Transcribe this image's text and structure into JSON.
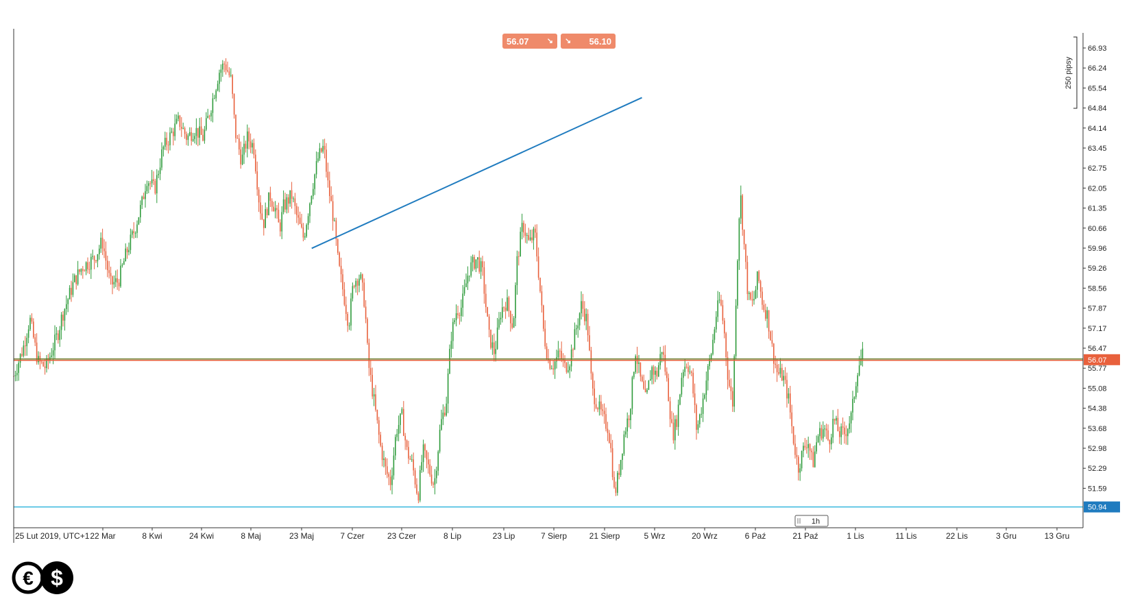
{
  "trade": {
    "sell_price": "56.07",
    "buy_price": "56.10",
    "sell_arrow": "↘",
    "buy_arrow": "↘"
  },
  "timeframe": "1h",
  "pip_label": "250 pipsy",
  "current_price_label": "56.07",
  "support_label": "50.94",
  "colors": {
    "up_candle": "#2e9b3b",
    "down_candle": "#e8603c",
    "trendline": "#1f7bbf",
    "support": "#37b8de",
    "support_tag": "#1f7bbf",
    "current_line": "#6a7a2a",
    "current_line2": "#e8603c",
    "current_tag": "#e8603c",
    "axis": "#333333"
  },
  "chart_data": {
    "type": "candlestick",
    "y_ticks": [
      "66.93",
      "66.24",
      "65.54",
      "64.84",
      "64.14",
      "63.45",
      "62.75",
      "62.05",
      "61.35",
      "60.66",
      "59.96",
      "59.26",
      "58.56",
      "57.87",
      "57.17",
      "56.47",
      "55.77",
      "55.08",
      "54.38",
      "53.68",
      "52.98",
      "52.29",
      "51.59"
    ],
    "ylim": [
      50.5,
      67.3
    ],
    "x_ticks": [
      "25 Lut 2019, UTC+1",
      "22 Mar",
      "8 Kwi",
      "24 Kwi",
      "8 Maj",
      "23 Maj",
      "7 Czer",
      "23 Czer",
      "8 Lip",
      "23 Lip",
      "7 Sierp",
      "21 Sierp",
      "5 Wrz",
      "20 Wrz",
      "6 Paź",
      "21 Paź",
      "1 Lis",
      "11 Lis",
      "22 Lis",
      "3 Gru",
      "13 Gru"
    ],
    "price_path": [
      [
        0,
        55.5
      ],
      [
        0.012,
        56.5
      ],
      [
        0.02,
        57.5
      ],
      [
        0.03,
        56.0
      ],
      [
        0.04,
        55.8
      ],
      [
        0.055,
        57.0
      ],
      [
        0.06,
        57.6
      ],
      [
        0.075,
        58.8
      ],
      [
        0.085,
        59.3
      ],
      [
        0.1,
        59.6
      ],
      [
        0.11,
        60.2
      ],
      [
        0.12,
        58.7
      ],
      [
        0.13,
        58.8
      ],
      [
        0.14,
        59.8
      ],
      [
        0.15,
        60.6
      ],
      [
        0.16,
        61.6
      ],
      [
        0.165,
        62.4
      ],
      [
        0.175,
        62.0
      ],
      [
        0.185,
        63.4
      ],
      [
        0.195,
        63.9
      ],
      [
        0.205,
        64.4
      ],
      [
        0.215,
        63.8
      ],
      [
        0.225,
        64.1
      ],
      [
        0.235,
        63.8
      ],
      [
        0.245,
        64.9
      ],
      [
        0.255,
        66.1
      ],
      [
        0.262,
        66.4
      ],
      [
        0.27,
        65.8
      ],
      [
        0.275,
        64.0
      ],
      [
        0.283,
        63.0
      ],
      [
        0.29,
        63.8
      ],
      [
        0.298,
        63.5
      ],
      [
        0.305,
        61.5
      ],
      [
        0.31,
        60.8
      ],
      [
        0.318,
        61.8
      ],
      [
        0.325,
        61.3
      ],
      [
        0.33,
        60.6
      ],
      [
        0.335,
        61.4
      ],
      [
        0.345,
        61.8
      ],
      [
        0.352,
        61.0
      ],
      [
        0.36,
        60.3
      ],
      [
        0.37,
        62.0
      ],
      [
        0.378,
        63.1
      ],
      [
        0.385,
        63.5
      ],
      [
        0.39,
        62.2
      ],
      [
        0.397,
        61.0
      ],
      [
        0.403,
        59.4
      ],
      [
        0.41,
        58.3
      ],
      [
        0.416,
        57.3
      ],
      [
        0.422,
        58.8
      ],
      [
        0.43,
        59.0
      ],
      [
        0.436,
        58.0
      ],
      [
        0.44,
        56.0
      ],
      [
        0.448,
        54.5
      ],
      [
        0.455,
        53.1
      ],
      [
        0.462,
        52.2
      ],
      [
        0.468,
        51.8
      ],
      [
        0.475,
        53.6
      ],
      [
        0.482,
        54.1
      ],
      [
        0.488,
        52.9
      ],
      [
        0.495,
        52.4
      ],
      [
        0.502,
        51.3
      ],
      [
        0.508,
        52.9
      ],
      [
        0.515,
        52.3
      ],
      [
        0.522,
        51.7
      ],
      [
        0.53,
        53.8
      ],
      [
        0.537,
        54.6
      ],
      [
        0.543,
        56.9
      ],
      [
        0.55,
        57.8
      ],
      [
        0.556,
        57.9
      ],
      [
        0.565,
        59.2
      ],
      [
        0.575,
        59.6
      ],
      [
        0.582,
        59.1
      ],
      [
        0.59,
        56.9
      ],
      [
        0.597,
        56.3
      ],
      [
        0.605,
        57.8
      ],
      [
        0.612,
        58.1
      ],
      [
        0.62,
        57.2
      ],
      [
        0.625,
        59.5
      ],
      [
        0.632,
        60.8
      ],
      [
        0.64,
        60.1
      ],
      [
        0.647,
        60.5
      ],
      [
        0.652,
        59.0
      ],
      [
        0.658,
        57.0
      ],
      [
        0.664,
        56.0
      ],
      [
        0.67,
        55.9
      ],
      [
        0.678,
        56.3
      ],
      [
        0.684,
        55.8
      ],
      [
        0.69,
        56.0
      ],
      [
        0.698,
        57.1
      ],
      [
        0.705,
        58.0
      ],
      [
        0.712,
        57.4
      ],
      [
        0.718,
        55.0
      ],
      [
        0.725,
        54.5
      ],
      [
        0.732,
        54.0
      ],
      [
        0.738,
        53.7
      ],
      [
        0.742,
        52.8
      ],
      [
        0.746,
        51.3
      ],
      [
        0.752,
        52.3
      ],
      [
        0.758,
        53.5
      ],
      [
        0.765,
        54.3
      ],
      [
        0.772,
        56.4
      ],
      [
        0.778,
        55.4
      ],
      [
        0.785,
        54.6
      ],
      [
        0.792,
        55.8
      ],
      [
        0.798,
        55.5
      ],
      [
        0.805,
        56.5
      ],
      [
        0.812,
        55.1
      ],
      [
        0.818,
        53.4
      ],
      [
        0.824,
        54.1
      ],
      [
        0.83,
        55.7
      ],
      [
        0.836,
        56.0
      ],
      [
        0.842,
        55.4
      ],
      [
        0.848,
        53.6
      ],
      [
        0.854,
        54.4
      ],
      [
        0.86,
        55.4
      ],
      [
        0.866,
        56.3
      ],
      [
        0.872,
        57.6
      ],
      [
        0.877,
        58.2
      ],
      [
        0.882,
        57.1
      ],
      [
        0.887,
        55.4
      ],
      [
        0.893,
        54.5
      ],
      [
        0.897,
        58.5
      ],
      [
        0.902,
        62.0
      ],
      [
        0.907,
        60.0
      ],
      [
        0.912,
        58.2
      ],
      [
        0.918,
        58.0
      ],
      [
        0.924,
        59.0
      ],
      [
        0.93,
        58.0
      ],
      [
        0.936,
        57.6
      ],
      [
        0.942,
        56.4
      ],
      [
        0.948,
        55.6
      ],
      [
        0.955,
        55.5
      ],
      [
        0.962,
        54.7
      ],
      [
        0.968,
        53.3
      ],
      [
        0.974,
        52.3
      ],
      [
        0.98,
        52.9
      ],
      [
        0.986,
        53.3
      ],
      [
        0.992,
        52.4
      ],
      [
        0.998,
        53.4
      ],
      [
        1.006,
        53.7
      ],
      [
        1.012,
        53.2
      ],
      [
        1.018,
        54.0
      ],
      [
        1.025,
        53.5
      ],
      [
        1.032,
        53.5
      ],
      [
        1.04,
        54.1
      ],
      [
        1.048,
        55.8
      ],
      [
        1.055,
        56.3
      ]
    ],
    "trendline": {
      "from": [
        0.37,
        59.95
      ],
      "to": [
        0.78,
        65.2
      ]
    },
    "current_price": 56.07,
    "support_level": 50.94,
    "grid": false
  }
}
